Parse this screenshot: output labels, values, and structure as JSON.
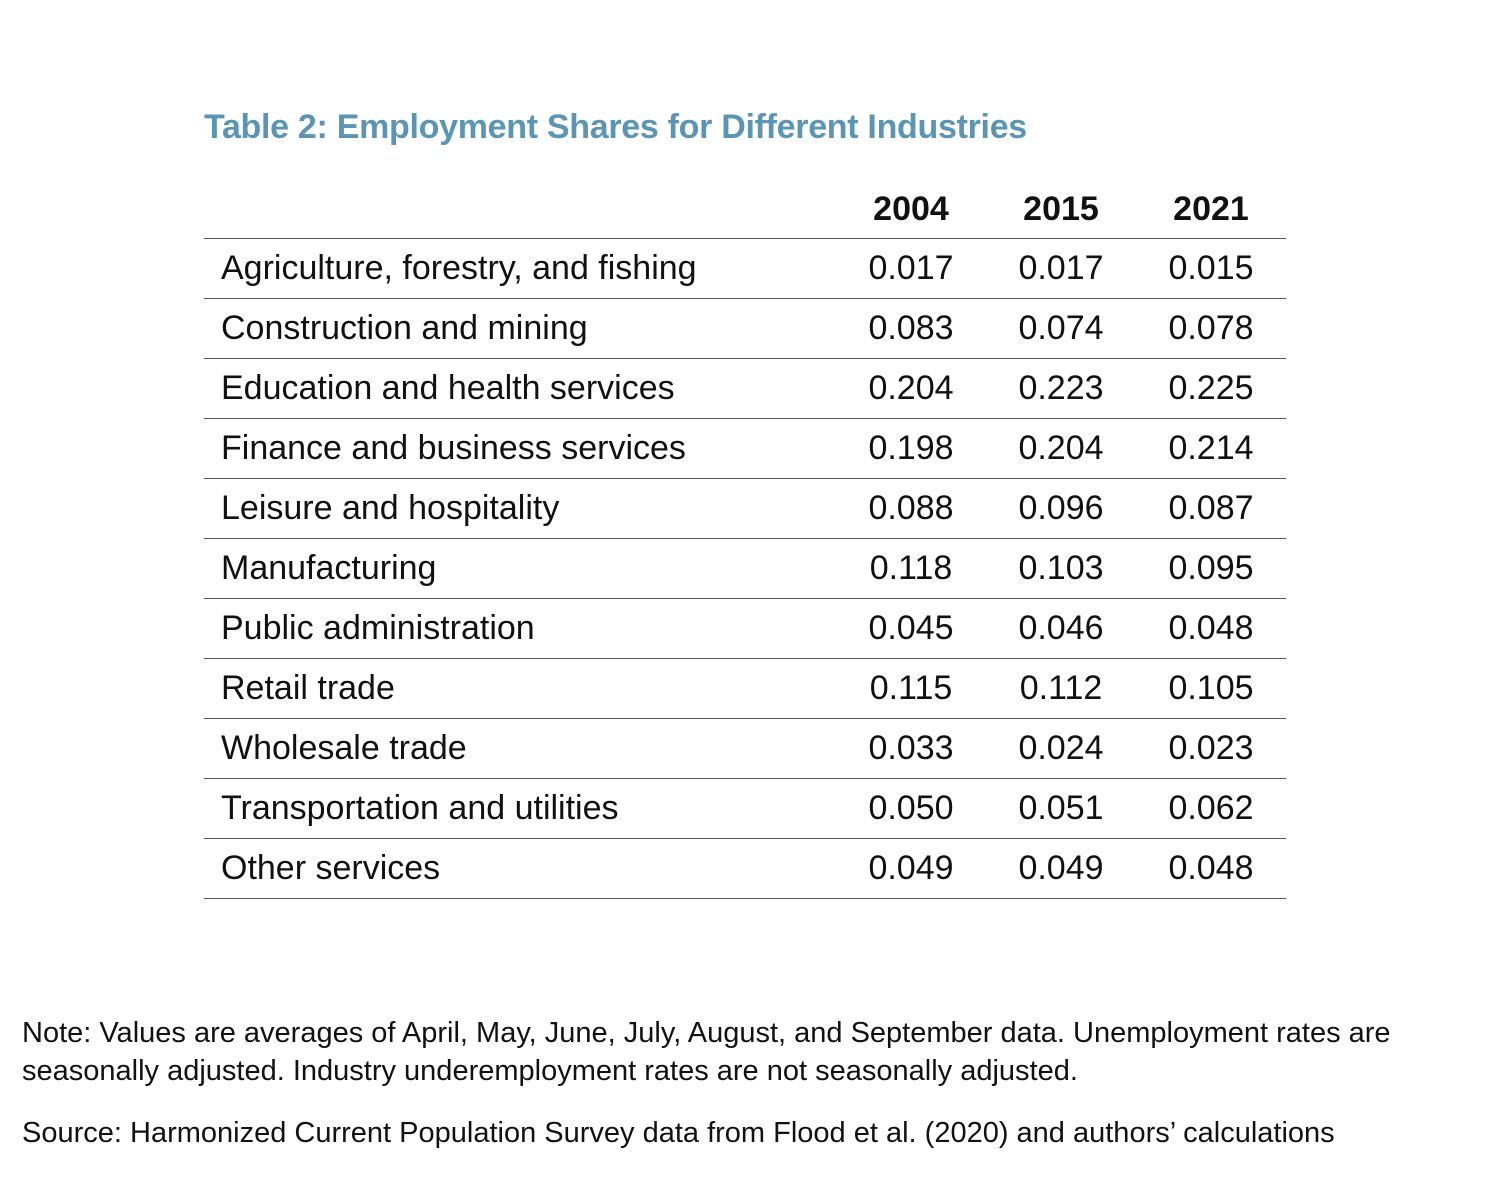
{
  "title": "Table 2: Employment Shares for Different Industries",
  "table": {
    "columns": [
      "",
      "2004",
      "2015",
      "2021"
    ],
    "rows": [
      {
        "industry": "Agriculture, forestry, and fishing",
        "values": [
          "0.017",
          "0.017",
          "0.015"
        ]
      },
      {
        "industry": "Construction and mining",
        "values": [
          "0.083",
          "0.074",
          "0.078"
        ]
      },
      {
        "industry": "Education and health services",
        "values": [
          "0.204",
          "0.223",
          "0.225"
        ]
      },
      {
        "industry": "Finance and business services",
        "values": [
          "0.198",
          "0.204",
          "0.214"
        ]
      },
      {
        "industry": "Leisure and hospitality",
        "values": [
          "0.088",
          "0.096",
          "0.087"
        ]
      },
      {
        "industry": "Manufacturing",
        "values": [
          "0.118",
          "0.103",
          "0.095"
        ]
      },
      {
        "industry": "Public administration",
        "values": [
          "0.045",
          "0.046",
          "0.048"
        ]
      },
      {
        "industry": "Retail trade",
        "values": [
          "0.115",
          "0.112",
          "0.105"
        ]
      },
      {
        "industry": "Wholesale trade",
        "values": [
          "0.033",
          "0.024",
          "0.023"
        ]
      },
      {
        "industry": "Transportation and utilities",
        "values": [
          "0.050",
          "0.051",
          "0.062"
        ]
      },
      {
        "industry": "Other services",
        "values": [
          "0.049",
          "0.049",
          "0.048"
        ]
      }
    ]
  },
  "note": "Note: Values are averages of April, May, June, July, August, and September data. Unemployment rates are seasonally adjusted. Industry underemployment rates are not seasonally adjusted.",
  "source": "Source: Harmonized Current Population Survey data from Flood et al. (2020) and authors’ calculations",
  "colors": {
    "title": "#5b95b5",
    "text": "#111111",
    "rule": "#555555"
  }
}
